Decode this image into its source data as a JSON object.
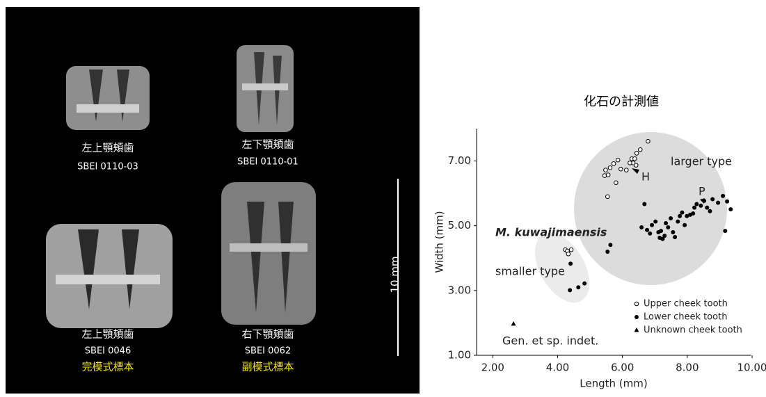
{
  "figure": {
    "photos": [
      {
        "label": "左上顎頬歯",
        "specimen": "SBEI 0110-03"
      },
      {
        "label": "左下顎頬歯",
        "specimen": "SBEI 0110-01"
      },
      {
        "label": "左上顎頬歯",
        "specimen": "SBEI 0046",
        "status": "完模式標本"
      },
      {
        "label": "右下顎頬歯",
        "specimen": "SBEI 0062",
        "status": "副模式標本"
      }
    ],
    "scale_bar": "10 mm"
  },
  "chart_data": {
    "type": "scatter",
    "title": "化石の計測値",
    "x_label": "Length (mm)",
    "y_label": "Width (mm)",
    "xlim": [
      1.5,
      10
    ],
    "ylim": [
      1,
      8
    ],
    "xticks": [
      {
        "value": 2,
        "label": "2.00"
      },
      {
        "value": 4,
        "label": "4.00"
      },
      {
        "value": 6,
        "label": "6.00"
      },
      {
        "value": 8,
        "label": "8.00"
      },
      {
        "value": 10,
        "label": "10.00"
      }
    ],
    "yticks": [
      {
        "value": 1,
        "label": "1.00"
      },
      {
        "value": 3,
        "label": "3.00"
      },
      {
        "value": 5,
        "label": "5.00"
      },
      {
        "value": 7,
        "label": "7.00"
      }
    ],
    "annotations": [
      "larger type",
      "smaller type",
      "M. kuwajimaensis",
      "Gen. et sp. indet.",
      "H",
      "P"
    ],
    "series": [
      {
        "name": "Upper cheek tooth",
        "color": "#000000",
        "marker": "open-circle",
        "x": [
          5.48,
          5.45,
          5.56,
          5.62,
          5.73,
          5.86,
          5.8,
          5.54,
          5.95,
          6.12,
          6.29,
          6.33,
          6.38,
          6.44,
          6.55,
          6.79,
          6.23,
          6.42,
          4.24,
          4.3,
          4.42,
          4.33
        ],
        "values": [
          6.72,
          6.55,
          6.57,
          6.79,
          6.92,
          7.03,
          6.33,
          5.9,
          6.75,
          6.72,
          7.07,
          6.94,
          7.07,
          7.24,
          7.35,
          7.61,
          6.94,
          6.87,
          4.26,
          4.22,
          4.26,
          4.13
        ]
      },
      {
        "name": "Lower cheek tooth",
        "color": "#000000",
        "marker": "filled-circle",
        "x": [
          4.4,
          4.38,
          4.64,
          4.83,
          5.54,
          5.63,
          6.68,
          6.59,
          6.76,
          6.85,
          6.91,
          7.02,
          7.11,
          7.15,
          7.19,
          7.24,
          7.3,
          7.34,
          7.41,
          7.49,
          7.56,
          7.62,
          7.71,
          7.77,
          7.84,
          7.92,
          7.99,
          8.09,
          8.18,
          8.22,
          8.29,
          8.42,
          8.52,
          8.61,
          8.7,
          8.78,
          8.95,
          9.1,
          9.23,
          9.34,
          9.17
        ],
        "values": [
          3.83,
          3.01,
          3.1,
          3.22,
          4.2,
          4.41,
          5.67,
          4.95,
          4.87,
          4.76,
          5.02,
          5.13,
          4.8,
          4.63,
          4.84,
          4.59,
          4.69,
          5.08,
          4.95,
          5.23,
          4.8,
          4.65,
          5.13,
          5.3,
          5.41,
          5.02,
          5.3,
          5.34,
          5.38,
          5.56,
          5.67,
          5.62,
          5.77,
          5.56,
          5.45,
          5.82,
          5.71,
          5.92,
          5.75,
          5.51,
          4.84
        ]
      },
      {
        "name": "Unknown cheek tooth",
        "color": "#000000",
        "marker": "triangle",
        "x": [
          2.64
        ],
        "values": [
          1.97
        ]
      }
    ]
  }
}
